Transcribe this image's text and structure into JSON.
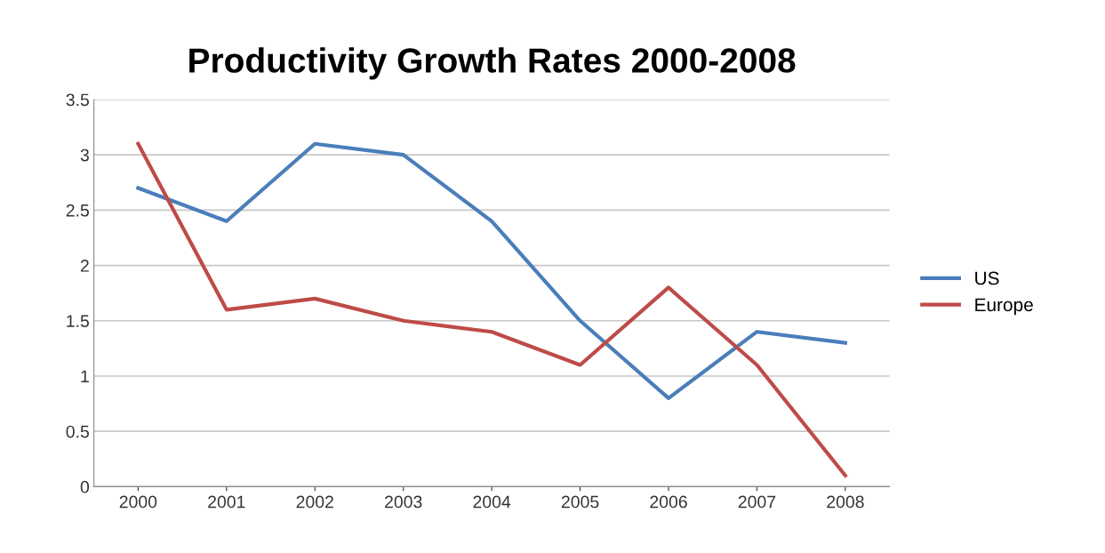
{
  "chart_data": {
    "type": "line",
    "title": "Productivity Growth Rates 2000-2008",
    "categories": [
      "2000",
      "2001",
      "2002",
      "2003",
      "2004",
      "2005",
      "2006",
      "2007",
      "2008"
    ],
    "series": [
      {
        "name": "US",
        "color": "#4a7ebb",
        "values": [
          2.7,
          2.4,
          3.1,
          3.0,
          2.4,
          1.5,
          0.8,
          1.4,
          1.3
        ]
      },
      {
        "name": "Europe",
        "color": "#be4b48",
        "values": [
          3.1,
          1.6,
          1.7,
          1.5,
          1.4,
          1.1,
          1.8,
          1.1,
          0.1
        ]
      }
    ],
    "ylim": [
      0,
      3.5
    ],
    "yticks": [
      0,
      0.5,
      1,
      1.5,
      2,
      2.5,
      3,
      3.5
    ],
    "grid": "y",
    "legend": "right",
    "marker": "none",
    "line_style": "solid"
  }
}
